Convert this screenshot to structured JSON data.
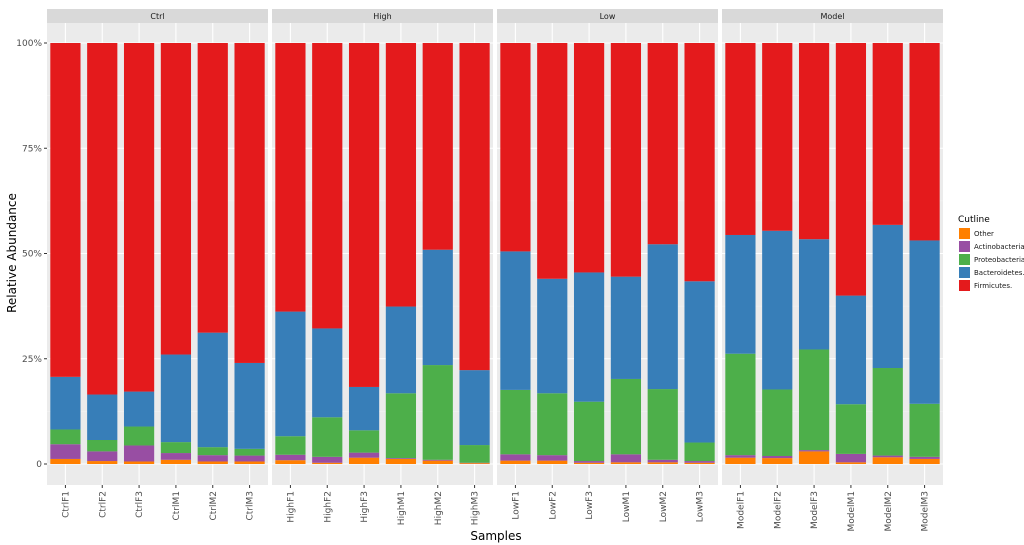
{
  "chart_data": {
    "type": "bar",
    "stacked": true,
    "faceted": true,
    "xlabel": "Samples",
    "ylabel": "Relative Abundance",
    "ylim": [
      0,
      100
    ],
    "y_ticks": [
      {
        "value": 0,
        "label": "0"
      },
      {
        "value": 25,
        "label": "25%"
      },
      {
        "value": 50,
        "label": "50%"
      },
      {
        "value": 75,
        "label": "75%"
      },
      {
        "value": 100,
        "label": "100%"
      }
    ],
    "legend": {
      "title": "Cutline",
      "placement": "right",
      "entries": [
        {
          "name": "Other",
          "color": "#ff7f00"
        },
        {
          "name": "Actinobacteria.",
          "color": "#984ea3"
        },
        {
          "name": "Proteobacteria.",
          "color": "#4daf4a"
        },
        {
          "name": "Bacteroidetes.",
          "color": "#377eb8"
        },
        {
          "name": "Firmicutes.",
          "color": "#e41a1c"
        }
      ]
    },
    "stack_order": [
      "Other",
      "Actinobacteria.",
      "Proteobacteria.",
      "Bacteroidetes.",
      "Firmicutes."
    ],
    "facets": [
      {
        "label": "Ctrl",
        "samples": [
          {
            "name": "CtrlF1",
            "values": [
              1.2,
              3.5,
              3.5,
              12.5,
              79.3
            ]
          },
          {
            "name": "CtrlF2",
            "values": [
              0.7,
              2.3,
              2.7,
              10.8,
              83.5
            ]
          },
          {
            "name": "CtrlF3",
            "values": [
              0.6,
              3.8,
              4.5,
              8.3,
              82.8
            ]
          },
          {
            "name": "CtrlM1",
            "values": [
              1.0,
              1.6,
              2.6,
              20.8,
              74.0
            ]
          },
          {
            "name": "CtrlM2",
            "values": [
              0.6,
              1.5,
              1.9,
              27.2,
              68.8
            ]
          },
          {
            "name": "CtrlM3",
            "values": [
              0.6,
              1.4,
              1.6,
              20.4,
              76.0
            ]
          }
        ]
      },
      {
        "label": "High",
        "samples": [
          {
            "name": "HighF1",
            "values": [
              0.9,
              1.3,
              4.4,
              29.6,
              63.8
            ]
          },
          {
            "name": "HighF2",
            "values": [
              0.3,
              1.4,
              9.4,
              21.1,
              67.8
            ]
          },
          {
            "name": "HighF3",
            "values": [
              1.5,
              1.2,
              5.3,
              10.3,
              81.7
            ]
          },
          {
            "name": "HighM1",
            "values": [
              1.2,
              0.2,
              15.4,
              20.6,
              62.6
            ]
          },
          {
            "name": "HighM2",
            "values": [
              0.8,
              0.2,
              22.5,
              27.4,
              49.1
            ]
          },
          {
            "name": "HighM3",
            "values": [
              0.2,
              0.1,
              4.2,
              17.8,
              77.7
            ]
          }
        ]
      },
      {
        "label": "Low",
        "samples": [
          {
            "name": "LowF1",
            "values": [
              0.8,
              1.5,
              15.3,
              32.9,
              49.5
            ]
          },
          {
            "name": "LowF2",
            "values": [
              0.8,
              1.3,
              14.7,
              27.2,
              56.0
            ]
          },
          {
            "name": "LowF3",
            "values": [
              0.3,
              0.4,
              14.1,
              30.7,
              54.5
            ]
          },
          {
            "name": "LowM1",
            "values": [
              0.4,
              1.9,
              17.9,
              24.3,
              55.5
            ]
          },
          {
            "name": "LowM2",
            "values": [
              0.4,
              0.6,
              16.8,
              34.4,
              47.8
            ]
          },
          {
            "name": "LowM3",
            "values": [
              0.3,
              0.4,
              4.4,
              38.3,
              56.6
            ]
          }
        ]
      },
      {
        "label": "Model",
        "samples": [
          {
            "name": "ModelF1",
            "values": [
              1.5,
              0.6,
              24.1,
              28.2,
              45.6
            ]
          },
          {
            "name": "ModelF2",
            "values": [
              1.4,
              0.5,
              15.8,
              37.7,
              44.6
            ]
          },
          {
            "name": "ModelF3",
            "values": [
              3.0,
              0.3,
              23.9,
              26.2,
              46.6
            ]
          },
          {
            "name": "ModelM1",
            "values": [
              0.4,
              2.0,
              11.8,
              25.8,
              60.0
            ]
          },
          {
            "name": "ModelM2",
            "values": [
              1.6,
              0.4,
              20.8,
              34.0,
              43.2
            ]
          },
          {
            "name": "ModelM3",
            "values": [
              1.2,
              0.5,
              12.6,
              38.8,
              46.9
            ]
          }
        ]
      }
    ]
  }
}
